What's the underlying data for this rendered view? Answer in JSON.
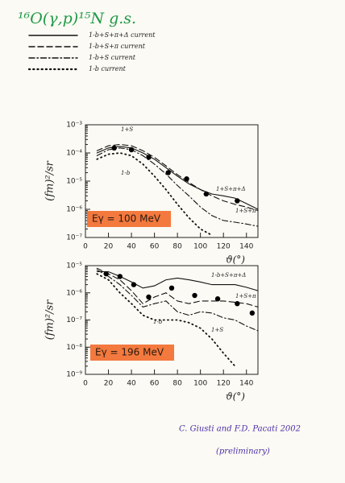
{
  "title": "¹⁶O(γ,p)¹⁵N g.s.",
  "footer": [
    "C. Giusti and F.D. Pacati 2002",
    "(preliminary)"
  ],
  "chart_data": [
    {
      "type": "line",
      "log_y": true,
      "y_label": "(fm)²/sr",
      "x_label": "ϑ(°)",
      "energy_label": "Eγ = 100 MeV",
      "annotations": [
        "1+S",
        "1-b",
        "1+S+π+Δ",
        "1+S+π"
      ],
      "xlim": [
        0,
        150
      ],
      "xticks": [
        0,
        20,
        40,
        60,
        80,
        100,
        120,
        140
      ],
      "ylim": [
        1e-07,
        0.001
      ],
      "yticks": [
        {
          "value": 1e-07,
          "label": "10⁻⁷"
        },
        {
          "value": 1e-06,
          "label": "10⁻⁶"
        },
        {
          "value": 1e-05,
          "label": "10⁻⁵"
        },
        {
          "value": 0.0001,
          "label": "10⁻⁴"
        },
        {
          "value": 0.001,
          "label": "10⁻³"
        }
      ],
      "x": [
        10,
        20,
        30,
        40,
        50,
        60,
        70,
        80,
        90,
        100,
        110,
        120,
        130,
        140,
        150
      ],
      "series": [
        {
          "name": "1-b+S+π+Δ current",
          "color": "#111111",
          "dash": "solid",
          "values": [
            0.0001,
            0.00015,
            0.00017,
            0.00015,
            0.0001,
            6e-05,
            3e-05,
            1.5e-05,
            8e-06,
            5e-06,
            3.5e-06,
            3e-06,
            2.5e-06,
            1.6e-06,
            1e-06
          ]
        },
        {
          "name": "1-b+S+π current",
          "color": "#111111",
          "dash": "dashed",
          "values": [
            0.00012,
            0.00018,
            0.0002,
            0.00018,
            0.00012,
            7e-05,
            3.5e-05,
            1.7e-05,
            9e-06,
            5e-06,
            3e-06,
            2e-06,
            1.5e-06,
            1.2e-06,
            9e-07
          ]
        },
        {
          "name": "1-b+S current",
          "color": "#111111",
          "dash": "dashdot",
          "values": [
            8e-05,
            0.00013,
            0.00015,
            0.00013,
            8e-05,
            4e-05,
            1.8e-05,
            7e-06,
            3e-06,
            1.2e-06,
            6e-07,
            4e-07,
            3.5e-07,
            3e-07,
            2.5e-07
          ]
        },
        {
          "name": "1-b current",
          "color": "#111111",
          "dash": "dotted",
          "values": [
            6e-05,
            9e-05,
            0.0001,
            8e-05,
            4e-05,
            1.5e-05,
            5e-06,
            1.5e-06,
            5e-07,
            2e-07,
            1.2e-07,
            null,
            null,
            null,
            null
          ]
        },
        {
          "color": "#000000",
          "marker": "dot",
          "x": [
            25,
            40,
            55,
            72,
            88,
            105,
            132
          ],
          "values": [
            0.00015,
            0.00013,
            7e-05,
            2e-05,
            1.2e-05,
            3.5e-06,
            2e-06
          ]
        }
      ]
    },
    {
      "type": "line",
      "log_y": true,
      "y_label": "(fm)²/sr",
      "x_label": "ϑ(°)",
      "energy_label": "Eγ = 196 MeV",
      "annotations": [
        "1-b+S+π+Δ",
        "1+S+π",
        "1-b",
        "1+S"
      ],
      "xlim": [
        0,
        150
      ],
      "xticks": [
        0,
        20,
        40,
        60,
        80,
        100,
        120,
        140
      ],
      "ylim": [
        1e-09,
        1e-05
      ],
      "yticks": [
        {
          "value": 1e-09,
          "label": "10⁻⁹"
        },
        {
          "value": 1e-08,
          "label": "10⁻⁸"
        },
        {
          "value": 1e-07,
          "label": "10⁻⁷"
        },
        {
          "value": 1e-06,
          "label": "10⁻⁶"
        },
        {
          "value": 1e-05,
          "label": "10⁻⁵"
        }
      ],
      "x": [
        10,
        20,
        30,
        40,
        50,
        60,
        70,
        80,
        90,
        100,
        110,
        120,
        130,
        140,
        150
      ],
      "series": [
        {
          "color": "#111111",
          "dash": "solid",
          "values": [
            6e-06,
            6e-06,
            4e-06,
            2.5e-06,
            1.5e-06,
            1.8e-06,
            3e-06,
            3.5e-06,
            3e-06,
            2.5e-06,
            2e-06,
            2e-06,
            2e-06,
            1.6e-06,
            1.2e-06
          ]
        },
        {
          "color": "#111111",
          "dash": "dashed",
          "values": [
            8e-06,
            5e-06,
            3e-06,
            1.2e-06,
            4e-07,
            7e-07,
            1e-06,
            5e-07,
            4e-07,
            5e-07,
            5e-07,
            5e-07,
            4.5e-07,
            4e-07,
            3e-07
          ]
        },
        {
          "color": "#111111",
          "dash": "dashdot",
          "values": [
            7e-06,
            4e-06,
            2e-06,
            8e-07,
            3e-07,
            4e-07,
            5e-07,
            2e-07,
            1.5e-07,
            2e-07,
            1.8e-07,
            1.2e-07,
            1e-07,
            6e-08,
            4e-08
          ]
        },
        {
          "color": "#111111",
          "dash": "dotted",
          "values": [
            5e-06,
            3e-06,
            1e-06,
            4e-07,
            1.5e-07,
            1e-07,
            1e-07,
            1e-07,
            8e-08,
            5e-08,
            2e-08,
            6e-09,
            2e-09,
            null,
            null
          ]
        },
        {
          "color": "#000000",
          "marker": "dot",
          "x": [
            18,
            30,
            42,
            55,
            75,
            95,
            115,
            132,
            145
          ],
          "values": [
            5e-06,
            4e-06,
            2e-06,
            7e-07,
            1.5e-06,
            8e-07,
            6e-07,
            4e-07,
            1.8e-07
          ]
        }
      ]
    }
  ]
}
